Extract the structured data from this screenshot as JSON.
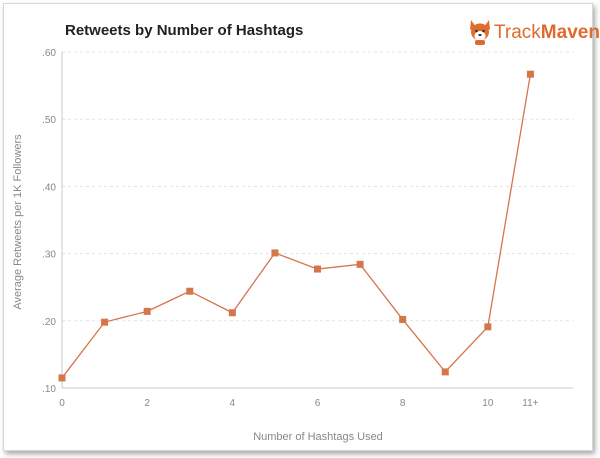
{
  "chart_data": {
    "type": "line",
    "title": "Retweets by Number of Hashtags",
    "brand": {
      "name_part1": "Track",
      "name_part2": "Maven",
      "logo_icon": "corgi-dog-icon"
    },
    "xlabel": "Number of Hashtags Used",
    "ylabel": "Average Retweets per 1K Followers",
    "x_tick_labels": [
      "0",
      "2",
      "4",
      "6",
      "8",
      "10",
      "11+"
    ],
    "y_tick_labels": [
      ".10",
      ".20",
      ".30",
      ".40",
      ".50",
      ".60"
    ],
    "ylim": [
      0.1,
      0.6
    ],
    "grid": true,
    "colors": {
      "series": "#d4764a",
      "grid": "#e3e3e3"
    },
    "series": [
      {
        "x": [
          "0",
          "1",
          "2",
          "3",
          "4",
          "5",
          "6",
          "7",
          "8",
          "9",
          "10",
          "11+"
        ],
        "values": [
          0.115,
          0.198,
          0.214,
          0.244,
          0.212,
          0.301,
          0.277,
          0.284,
          0.202,
          0.124,
          0.191,
          0.567
        ]
      }
    ]
  }
}
